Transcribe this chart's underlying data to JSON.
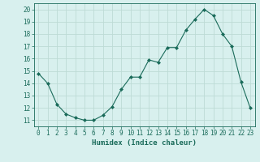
{
  "x": [
    0,
    1,
    2,
    3,
    4,
    5,
    6,
    7,
    8,
    9,
    10,
    11,
    12,
    13,
    14,
    15,
    16,
    17,
    18,
    19,
    20,
    21,
    22,
    23
  ],
  "y": [
    14.8,
    14.0,
    12.3,
    11.5,
    11.2,
    11.0,
    11.0,
    11.4,
    12.1,
    13.5,
    14.5,
    14.5,
    15.9,
    15.7,
    16.9,
    16.9,
    18.3,
    19.2,
    20.0,
    19.5,
    18.0,
    17.0,
    14.1,
    12.0
  ],
  "line_color": "#1a6b5a",
  "marker": "D",
  "marker_size": 2.0,
  "bg_color": "#d8f0ee",
  "grid_color": "#bddbd6",
  "tick_color": "#1a6b5a",
  "xlabel": "Humidex (Indice chaleur)",
  "xlim": [
    -0.5,
    23.5
  ],
  "ylim": [
    10.5,
    20.5
  ],
  "yticks": [
    11,
    12,
    13,
    14,
    15,
    16,
    17,
    18,
    19,
    20
  ],
  "xticks": [
    0,
    1,
    2,
    3,
    4,
    5,
    6,
    7,
    8,
    9,
    10,
    11,
    12,
    13,
    14,
    15,
    16,
    17,
    18,
    19,
    20,
    21,
    22,
    23
  ],
  "tick_fontsize": 5.5,
  "xlabel_fontsize": 6.5
}
